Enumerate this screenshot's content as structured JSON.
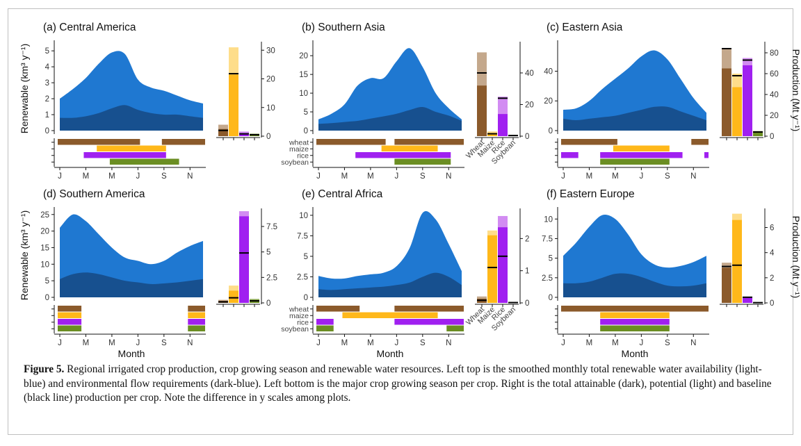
{
  "figure": {
    "caption_label": "Figure 5.",
    "caption_text": " Regional irrigated crop production, crop growing season and renewable water resources. Left top is the smoothed monthly total renewable water availability (light-blue) and environmental flow requirements (dark-blue). Left bottom is the major crop growing season per crop. Right is the total attainable (dark), potential (light) and baseline (black line) production per crop. Note the difference in y scales among plots."
  },
  "colors": {
    "total_water": "#1f78d1",
    "env_flow": "#17508f",
    "wheat": "#8b5a2b",
    "wheat_light": "#c4a88c",
    "maize": "#ffb81a",
    "maize_light": "#fedd8a",
    "rice": "#a020f0",
    "rice_light": "#d28cf2",
    "soybean": "#6b8e23",
    "soybean_light": "#a8bf7c"
  },
  "axis_text": {
    "month_ticks": [
      "J",
      "M",
      "M",
      "J",
      "S",
      "N"
    ],
    "month_label": "Month",
    "renewable_label": "Renewable (km³ y⁻¹)",
    "production_label": "Production (Mt y⁻¹)",
    "crop_names": [
      "wheat",
      "maize",
      "rice",
      "soybean"
    ],
    "bar_categories": [
      "Wheat",
      "Maize",
      "Rice",
      "Soybean"
    ]
  },
  "chart_data": [
    {
      "title": "(a) Central America",
      "type": "area",
      "x": [
        1,
        2,
        3,
        4,
        5,
        6,
        7,
        8,
        9,
        10,
        11,
        12
      ],
      "series": [
        {
          "values": [
            2.0,
            2.6,
            3.3,
            4.2,
            4.9,
            4.8,
            3.2,
            2.7,
            2.5,
            2.2,
            1.9,
            1.7
          ]
        },
        {
          "values": [
            0.8,
            0.8,
            0.9,
            1.1,
            1.4,
            1.6,
            1.3,
            1.1,
            1.0,
            1.0,
            0.9,
            0.8
          ]
        }
      ],
      "ylim": [
        0,
        5.4
      ],
      "yticks": [
        0,
        1,
        2,
        3,
        4,
        5
      ],
      "season": {
        "wheat": [
          [
            1,
            7
          ],
          [
            9,
            12
          ]
        ],
        "maize": [
          [
            4,
            9
          ]
        ],
        "rice": [
          [
            3,
            9
          ]
        ],
        "soybean": [
          [
            5,
            10
          ]
        ]
      },
      "production": {
        "ylim": [
          0,
          32
        ],
        "yticks": [
          0,
          10,
          20,
          30
        ],
        "attainable": [
          2.5,
          21.5,
          1.0,
          0.6
        ],
        "potential": [
          4.0,
          31.0,
          1.6,
          0.9
        ],
        "baseline": [
          2.0,
          21.8,
          0.8,
          0.5
        ]
      }
    },
    {
      "title": "(b) Southern Asia",
      "type": "area",
      "x": [
        1,
        2,
        3,
        4,
        5,
        6,
        7,
        8,
        9,
        10,
        11,
        12
      ],
      "series": [
        {
          "values": [
            3.0,
            4.5,
            7.0,
            12.0,
            14.0,
            14.0,
            18.5,
            22.0,
            17.0,
            10.0,
            6.0,
            3.0
          ]
        },
        {
          "values": [
            1.8,
            2.0,
            2.3,
            2.6,
            3.2,
            3.8,
            4.5,
            5.5,
            6.3,
            5.0,
            4.0,
            2.6
          ]
        }
      ],
      "ylim": [
        0,
        23
      ],
      "yticks": [
        0,
        5,
        10,
        15,
        20
      ],
      "season": {
        "wheat": [
          [
            1,
            6
          ],
          [
            7,
            12
          ]
        ],
        "maize": [
          [
            6,
            10
          ]
        ],
        "rice": [
          [
            4,
            11
          ]
        ],
        "soybean": [
          [
            7,
            11
          ]
        ]
      },
      "production": {
        "ylim": [
          0,
          58
        ],
        "yticks": [
          0,
          20,
          40
        ],
        "attainable": [
          32,
          2.0,
          14,
          0.5
        ],
        "potential": [
          53,
          3.0,
          25,
          0.8
        ],
        "baseline": [
          40,
          1.5,
          24,
          0.4
        ]
      }
    },
    {
      "title": "(c) Eastern Asia",
      "type": "area",
      "x": [
        1,
        2,
        3,
        4,
        5,
        6,
        7,
        8,
        9,
        10,
        11,
        12
      ],
      "series": [
        {
          "values": [
            14,
            15,
            20,
            28,
            35,
            42,
            50,
            54,
            48,
            35,
            22,
            12
          ]
        },
        {
          "values": [
            8,
            7,
            8,
            9,
            10,
            12,
            14,
            16,
            16,
            13,
            10,
            7
          ]
        }
      ],
      "ylim": [
        0,
        58
      ],
      "yticks": [
        0,
        20,
        40
      ],
      "season": {
        "wheat": [
          [
            1,
            5
          ],
          [
            11,
            12
          ]
        ],
        "maize": [
          [
            5,
            9
          ]
        ],
        "rice": [
          [
            1,
            2
          ],
          [
            4,
            10
          ],
          [
            12,
            12
          ]
        ],
        "soybean": [
          [
            4,
            9
          ]
        ]
      },
      "production": {
        "ylim": [
          0,
          88
        ],
        "yticks": [
          0,
          20,
          40,
          60,
          80
        ],
        "attainable": [
          65,
          47,
          68,
          4
        ],
        "potential": [
          84,
          60,
          75,
          5
        ],
        "baseline": [
          84,
          58,
          73,
          4
        ]
      }
    },
    {
      "title": "(d) Southern America",
      "type": "area",
      "x": [
        1,
        2,
        3,
        4,
        5,
        6,
        7,
        8,
        9,
        10,
        11,
        12
      ],
      "series": [
        {
          "values": [
            21,
            25,
            23,
            19,
            15,
            12,
            11,
            10,
            11,
            13.5,
            15.5,
            17
          ]
        },
        {
          "values": [
            5.5,
            7.0,
            7.5,
            7.0,
            6.0,
            5.0,
            4.5,
            4.0,
            4.2,
            4.5,
            5.0,
            5.5
          ]
        }
      ],
      "ylim": [
        0,
        26
      ],
      "yticks": [
        0,
        5,
        10,
        15,
        20,
        25
      ],
      "season": {
        "wheat": [
          [
            1,
            2.5
          ],
          [
            11,
            12
          ]
        ],
        "maize": [
          [
            1,
            2.5
          ],
          [
            11,
            12
          ]
        ],
        "rice": [
          [
            1,
            2.5
          ],
          [
            11,
            12
          ]
        ],
        "soybean": [
          [
            1,
            2.5
          ],
          [
            11,
            12
          ]
        ]
      },
      "production": {
        "ylim": [
          0,
          9
        ],
        "yticks": [
          0,
          2.5,
          5,
          7.5
        ],
        "attainable": [
          0.2,
          1.2,
          8.5,
          0.3
        ],
        "potential": [
          0.3,
          1.7,
          9.0,
          0.4
        ],
        "baseline": [
          0.1,
          0.5,
          4.9,
          0.2
        ]
      }
    },
    {
      "title": "(e) Central Africa",
      "type": "area",
      "x": [
        1,
        2,
        3,
        4,
        5,
        6,
        7,
        8,
        9,
        10,
        11,
        12
      ],
      "series": [
        {
          "values": [
            2.6,
            2.3,
            2.3,
            2.6,
            2.8,
            3.0,
            3.8,
            6.0,
            10.3,
            9.5,
            6.5,
            3.2
          ]
        },
        {
          "values": [
            1.0,
            0.9,
            1.0,
            1.1,
            1.2,
            1.3,
            1.5,
            1.8,
            2.5,
            3.0,
            2.5,
            1.5
          ]
        }
      ],
      "ylim": [
        0,
        10.5
      ],
      "yticks": [
        0,
        2.5,
        5.0,
        7.5,
        10.0
      ],
      "season": {
        "wheat": [
          [
            1,
            4
          ],
          [
            7,
            12
          ]
        ],
        "maize": [
          [
            3,
            10
          ]
        ],
        "rice": [
          [
            1,
            2
          ],
          [
            7,
            12
          ]
        ],
        "soybean": [
          [
            1,
            2
          ],
          [
            11,
            12
          ]
        ]
      },
      "production": {
        "ylim": [
          0,
          2.85
        ],
        "yticks": [
          0,
          1,
          2
        ],
        "attainable": [
          0.13,
          2.1,
          2.35,
          0.02
        ],
        "potential": [
          0.2,
          2.25,
          2.7,
          0.02
        ],
        "baseline": [
          0.08,
          1.1,
          1.45,
          0.01
        ]
      }
    },
    {
      "title": "(f) Eastern Europe",
      "type": "area",
      "x": [
        1,
        2,
        3,
        4,
        5,
        6,
        7,
        8,
        9,
        10,
        11,
        12
      ],
      "series": [
        {
          "values": [
            5.3,
            7.0,
            9.0,
            10.5,
            10.0,
            8.0,
            5.5,
            4.2,
            3.8,
            4.0,
            4.5,
            5.3
          ]
        },
        {
          "values": [
            1.8,
            1.8,
            2.0,
            2.5,
            3.0,
            3.0,
            2.6,
            2.0,
            1.5,
            1.4,
            1.5,
            1.8
          ]
        }
      ],
      "ylim": [
        0,
        11
      ],
      "yticks": [
        0,
        2.5,
        5.0,
        7.5,
        10.0
      ],
      "season": {
        "wheat": [
          [
            1,
            12
          ]
        ],
        "maize": [
          [
            4,
            9
          ]
        ],
        "rice": [
          [
            4,
            9
          ]
        ],
        "soybean": [
          [
            4,
            9
          ]
        ]
      },
      "production": {
        "ylim": [
          0,
          7.3
        ],
        "yticks": [
          0,
          2,
          4,
          6
        ],
        "attainable": [
          2.8,
          6.6,
          0.4,
          0.02
        ],
        "potential": [
          3.2,
          7.1,
          0.5,
          0.03
        ],
        "baseline": [
          2.9,
          3.0,
          0.45,
          0.02
        ]
      }
    }
  ]
}
